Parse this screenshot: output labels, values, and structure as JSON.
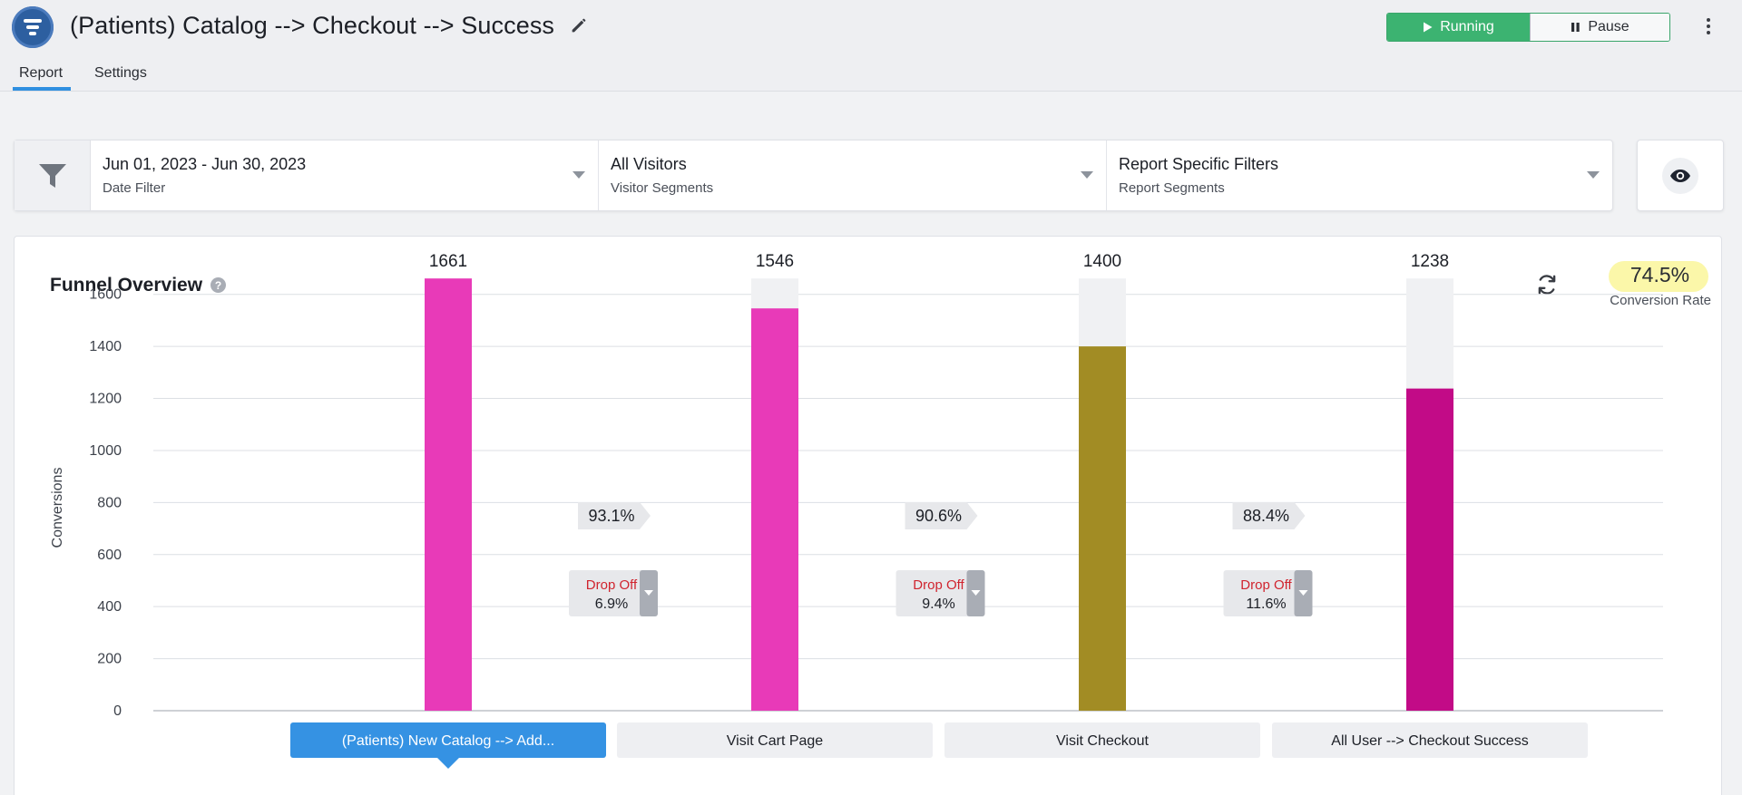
{
  "header": {
    "title": "(Patients) Catalog --> Checkout --> Success",
    "running_label": "Running",
    "pause_label": "Pause",
    "tabs": [
      {
        "label": "Report",
        "active": true
      },
      {
        "label": "Settings",
        "active": false
      }
    ]
  },
  "filters": {
    "date": {
      "value": "Jun 01, 2023 - Jun 30, 2023",
      "label": "Date Filter"
    },
    "visitors": {
      "value": "All Visitors",
      "label": "Visitor Segments"
    },
    "report": {
      "value": "Report Specific Filters",
      "label": "Report Segments"
    }
  },
  "funnel": {
    "title": "Funnel Overview",
    "help": "?",
    "conversion_rate": "74.5%",
    "conversion_label": "Conversion Rate"
  },
  "colors": {
    "accent": "#2f8fe0",
    "running": "#3cb371",
    "highlight": "#fbf7a9"
  },
  "chart_data": {
    "type": "bar",
    "ylabel": "Conversions",
    "ylim": [
      0,
      1700
    ],
    "yticks": [
      0,
      200,
      400,
      600,
      800,
      1000,
      1200,
      1400,
      1600
    ],
    "grid": true,
    "steps": [
      {
        "label": "(Patients) New Catalog --> Add...",
        "value": 1661,
        "color": "#e83ab8",
        "selected": true
      },
      {
        "label": "Visit Cart Page",
        "value": 1546,
        "color": "#e83ab8",
        "selected": false
      },
      {
        "label": "Visit Checkout",
        "value": 1400,
        "color": "#a28c24",
        "selected": false
      },
      {
        "label": "All User --> Checkout Success",
        "value": 1238,
        "color": "#c20b87",
        "selected": false
      }
    ],
    "transitions": [
      {
        "rate": "93.1%",
        "dropoff_label": "Drop Off",
        "dropoff": "6.9%"
      },
      {
        "rate": "90.6%",
        "dropoff_label": "Drop Off",
        "dropoff": "9.4%"
      },
      {
        "rate": "88.4%",
        "dropoff_label": "Drop Off",
        "dropoff": "11.6%"
      }
    ]
  }
}
